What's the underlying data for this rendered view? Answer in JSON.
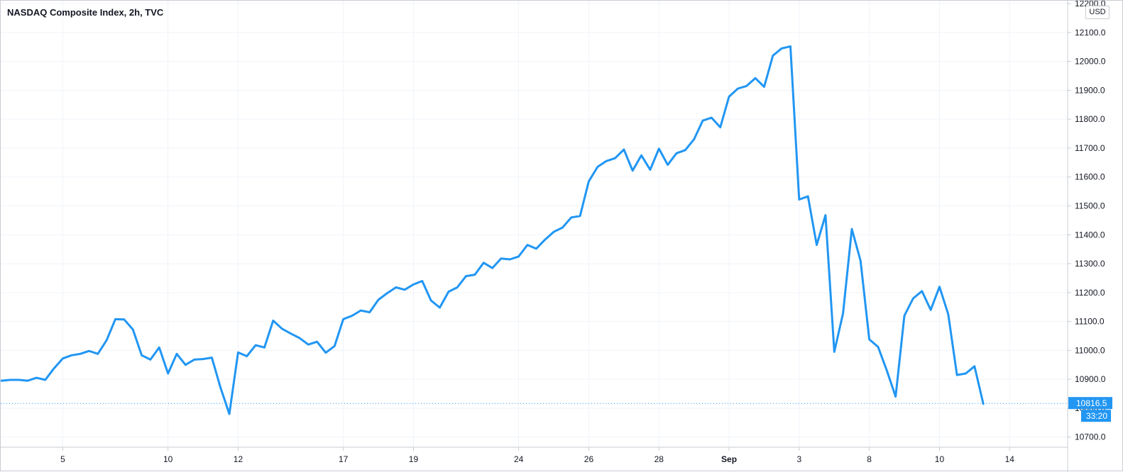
{
  "legend": {
    "title": "NASDAQ Composite Index, 2h, TVC"
  },
  "axis": {
    "currency": "USD"
  },
  "colors": {
    "line": "#2196f3",
    "grid": "#f0f3fa",
    "axis_border": "#c9ccd3",
    "text": "#131722",
    "price_label": "#2196f3"
  },
  "chart_data": {
    "type": "line",
    "title": "NASDAQ Composite Index, 2h, TVC",
    "xlabel": "",
    "ylabel": "",
    "ylim": [
      10665,
      12210
    ],
    "grid": true,
    "y_ticks": [
      "10700.0",
      "10800.0",
      "10900.0",
      "11000.0",
      "11100.0",
      "11200.0",
      "11300.0",
      "11400.0",
      "11500.0",
      "11600.0",
      "11700.0",
      "11800.0",
      "11900.0",
      "12000.0",
      "12100.0",
      "12200.0"
    ],
    "x_ticks": [
      {
        "label": "5",
        "index": 7,
        "bold": false
      },
      {
        "label": "10",
        "index": 19,
        "bold": false
      },
      {
        "label": "12",
        "index": 27,
        "bold": false
      },
      {
        "label": "17",
        "index": 39,
        "bold": false
      },
      {
        "label": "19",
        "index": 47,
        "bold": false
      },
      {
        "label": "24",
        "index": 59,
        "bold": false
      },
      {
        "label": "26",
        "index": 67,
        "bold": false
      },
      {
        "label": "28",
        "index": 75,
        "bold": false
      },
      {
        "label": "Sep",
        "index": 83,
        "bold": true
      },
      {
        "label": "3",
        "index": 91,
        "bold": false
      },
      {
        "label": "8",
        "index": 99,
        "bold": false
      },
      {
        "label": "10",
        "index": 107,
        "bold": false
      },
      {
        "label": "14",
        "index": 115,
        "bold": false
      }
    ],
    "last_price": "10816.5",
    "countdown": "33:20",
    "series": [
      {
        "values": [
          10895,
          10898,
          10898,
          10895,
          10905,
          10898,
          10938,
          10972,
          10983,
          10988,
          10998,
          10988,
          11035,
          11108,
          11107,
          11072,
          10983,
          10968,
          11010,
          10920,
          10988,
          10950,
          10968,
          10970,
          10975,
          10870,
          10780,
          10993,
          10980,
          11018,
          11010,
          11103,
          11075,
          11058,
          11043,
          11020,
          11030,
          10992,
          11015,
          11108,
          11120,
          11138,
          11132,
          11175,
          11198,
          11218,
          11210,
          11228,
          11240,
          11173,
          11148,
          11203,
          11218,
          11257,
          11262,
          11303,
          11285,
          11318,
          11315,
          11325,
          11365,
          11352,
          11383,
          11410,
          11425,
          11460,
          11465,
          11585,
          11635,
          11655,
          11665,
          11695,
          11622,
          11675,
          11625,
          11698,
          11642,
          11682,
          11693,
          11730,
          11795,
          11805,
          11772,
          11878,
          11906,
          11915,
          11942,
          11912,
          12020,
          12045,
          12052,
          11522,
          11533,
          11365,
          11468,
          10995,
          11128,
          11420,
          11310,
          11038,
          11012,
          10930,
          10840,
          11120,
          11180,
          11205,
          11140,
          11220,
          11125,
          10915,
          10920,
          10945,
          10815
        ]
      }
    ]
  }
}
